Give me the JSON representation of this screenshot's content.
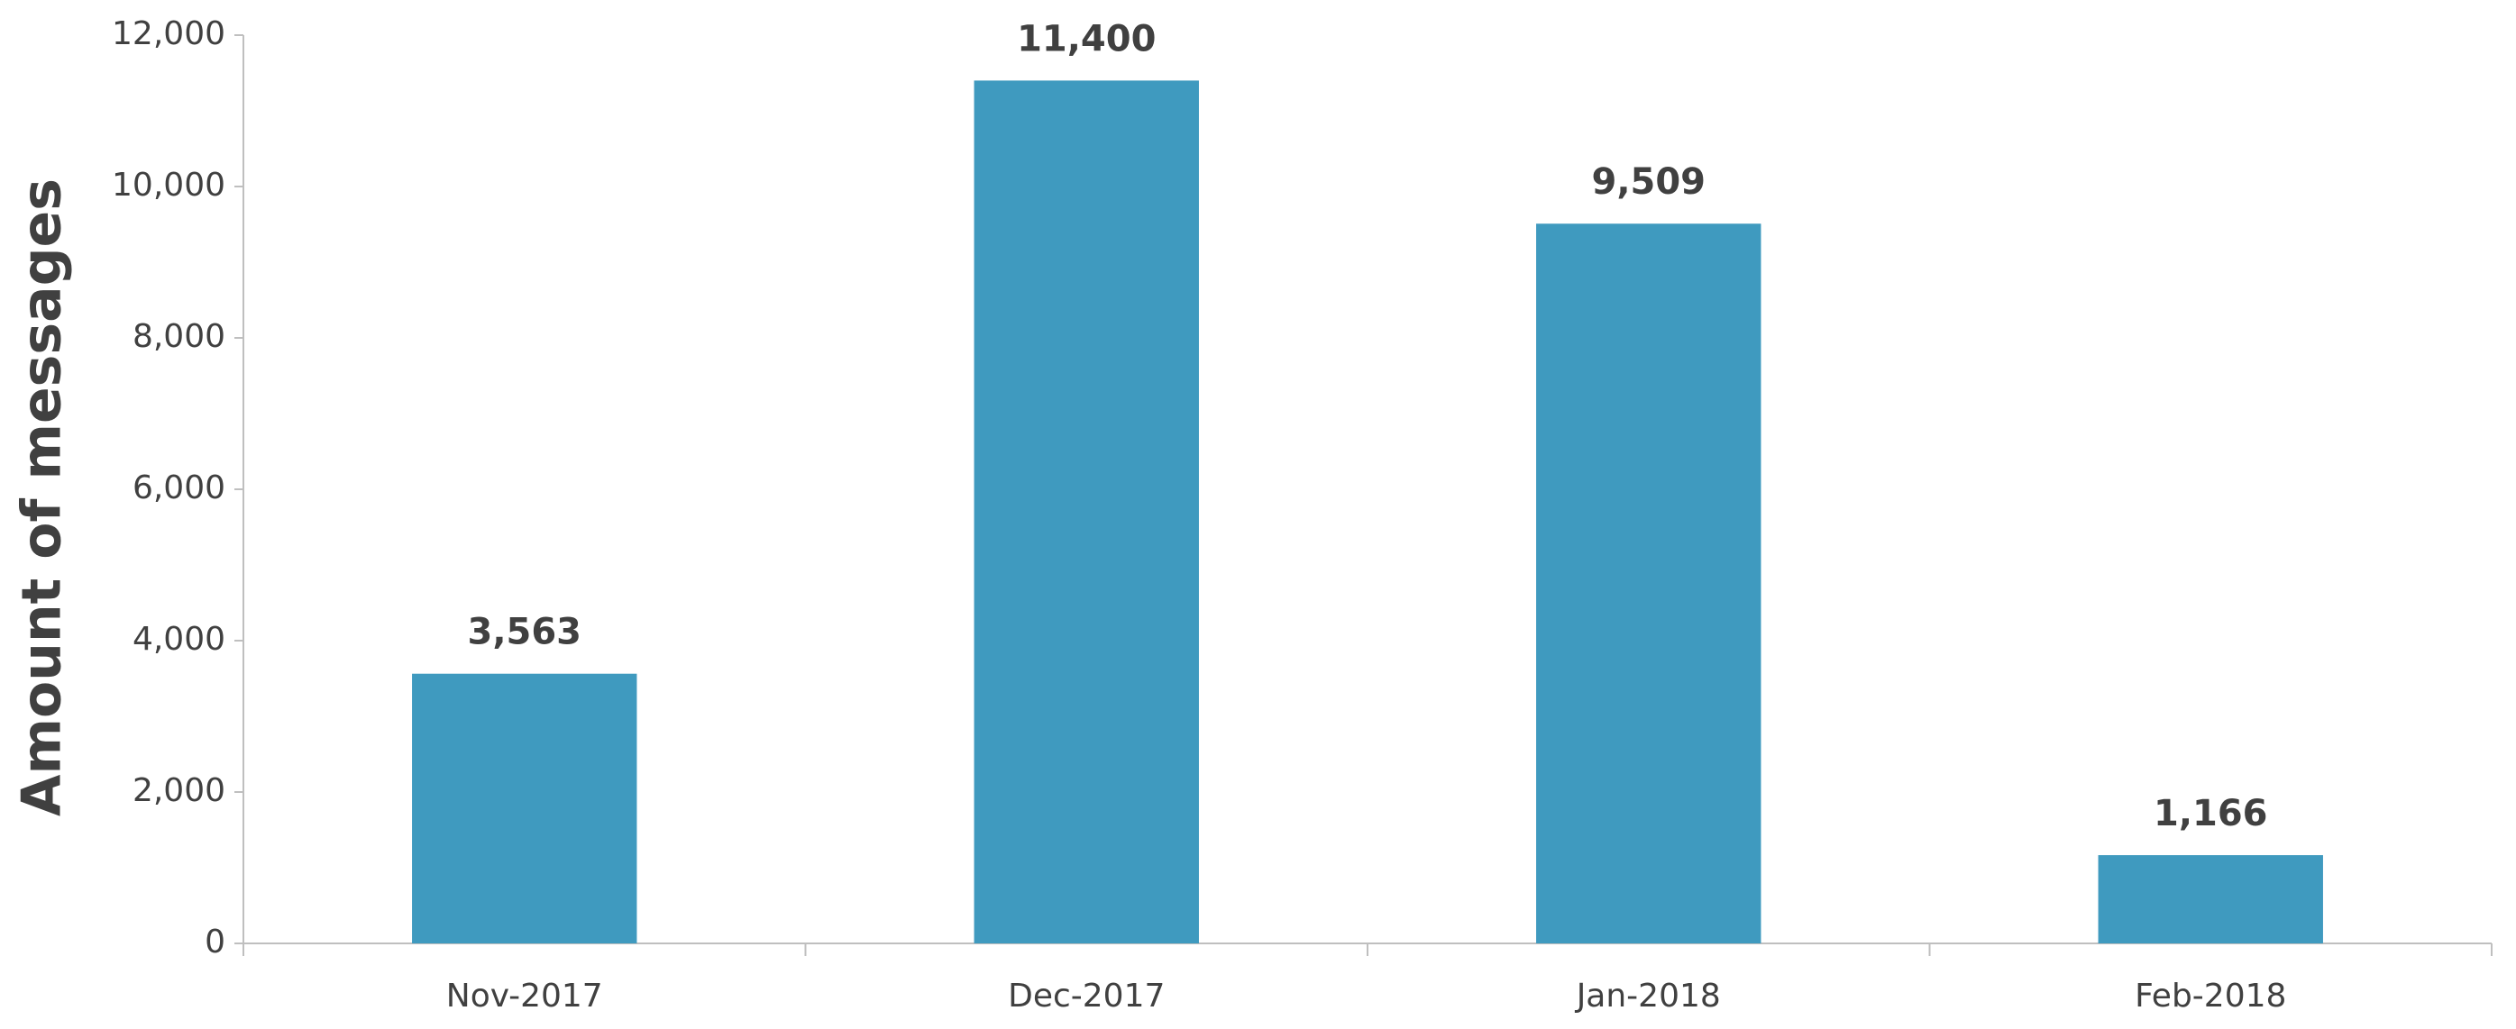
{
  "chart_data": {
    "type": "bar",
    "y_label": "Amount of messages",
    "categories": [
      "Nov-2017",
      "Dec-2017",
      "Jan-2018",
      "Feb-2018"
    ],
    "values": [
      3563,
      11400,
      9509,
      1166
    ],
    "value_labels": [
      "3,563",
      "11,400",
      "9,509",
      "1,166"
    ],
    "color": "#3f9abf",
    "ylim": [
      0,
      12000
    ],
    "yticks": [
      0,
      {
        "value": 2000,
        "label": "2,000"
      },
      {
        "value": 4000,
        "label": "4,000"
      },
      {
        "value": 6000,
        "label": "6,000"
      },
      {
        "value": 8000,
        "label": "8,000"
      },
      {
        "value": 10000,
        "label": "10,000"
      },
      {
        "value": 12000,
        "label": "12,000"
      }
    ],
    "grid": false
  }
}
